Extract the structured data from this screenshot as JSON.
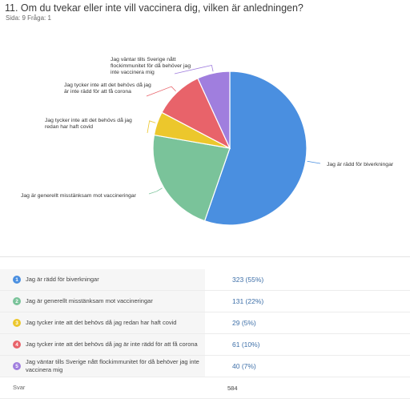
{
  "question": {
    "title": "11. Om du tvekar eller inte vill vaccinera dig, vilken är anledningen?",
    "subtitle": "Sida: 9 Fråga: 1"
  },
  "chart_data": {
    "type": "pie",
    "slices": [
      {
        "label": "Jag är rädd för biverkningar",
        "value": 323,
        "percent": 55,
        "color": "#4a8fe0",
        "chart_lines": [
          "Jag är rädd för biverkningar"
        ]
      },
      {
        "label": "Jag är generellt misstänksam mot vaccineringar",
        "value": 131,
        "percent": 22,
        "color": "#7ac39a",
        "chart_lines": [
          "Jag är generellt misstänksam mot vaccineringar"
        ]
      },
      {
        "label": "Jag tycker inte att det behövs då jag redan har haft covid",
        "value": 29,
        "percent": 5,
        "color": "#ecc72c",
        "chart_lines": [
          "Jag tycker inte att det behövs då jag",
          "redan har haft covid"
        ]
      },
      {
        "label": "Jag tycker inte att det behövs då jag är inte rädd för att få corona",
        "value": 61,
        "percent": 10,
        "color": "#e8636a",
        "chart_lines": [
          "Jag tycker inte att det behövs då jag",
          "är inte rädd för att få corona"
        ]
      },
      {
        "label": "Jag väntar tills Sverige nått flockimmunitet för då behöver jag inte vaccinera mig",
        "value": 40,
        "percent": 7,
        "color": "#a07ede",
        "chart_lines": [
          "Jag väntar tills Sverige nått",
          "flockimmunitet för då behöver jag",
          "inte vaccinera mig"
        ]
      }
    ]
  },
  "table": {
    "rows": [
      {
        "num": "1",
        "label": "Jag är rädd för biverkningar",
        "lines": [
          "Jag är rädd för biverkningar"
        ],
        "value": "323 (55%)",
        "color": "#4a8fe0"
      },
      {
        "num": "2",
        "label": "Jag är generellt misstänksam mot vaccineringar",
        "lines": [
          "Jag är generellt misstänksam mot vaccineringar"
        ],
        "value": "131 (22%)",
        "color": "#7ac39a"
      },
      {
        "num": "3",
        "label": "Jag tycker inte att det behövs då jag redan har haft covid",
        "lines": [
          "Jag tycker inte att det behövs då jag redan har haft covid"
        ],
        "value": "29 (5%)",
        "color": "#ecc72c"
      },
      {
        "num": "4",
        "label": "Jag tycker inte att det behövs då jag är inte rädd för att få corona",
        "lines": [
          "Jag tycker inte att det behövs då jag är inte rädd för att få corona"
        ],
        "value": "61 (10%)",
        "color": "#e8636a"
      },
      {
        "num": "5",
        "label": "Jag väntar tills Sverige nått flockimmunitet för då behöver jag inte vaccinera mig",
        "lines": [
          "Jag väntar tills Sverige nått flockimmunitet för då behöver jag inte",
          "vaccinera mig"
        ],
        "value": "40 (7%)",
        "color": "#a07ede"
      }
    ],
    "total_label": "Svar",
    "total_value": "584"
  }
}
